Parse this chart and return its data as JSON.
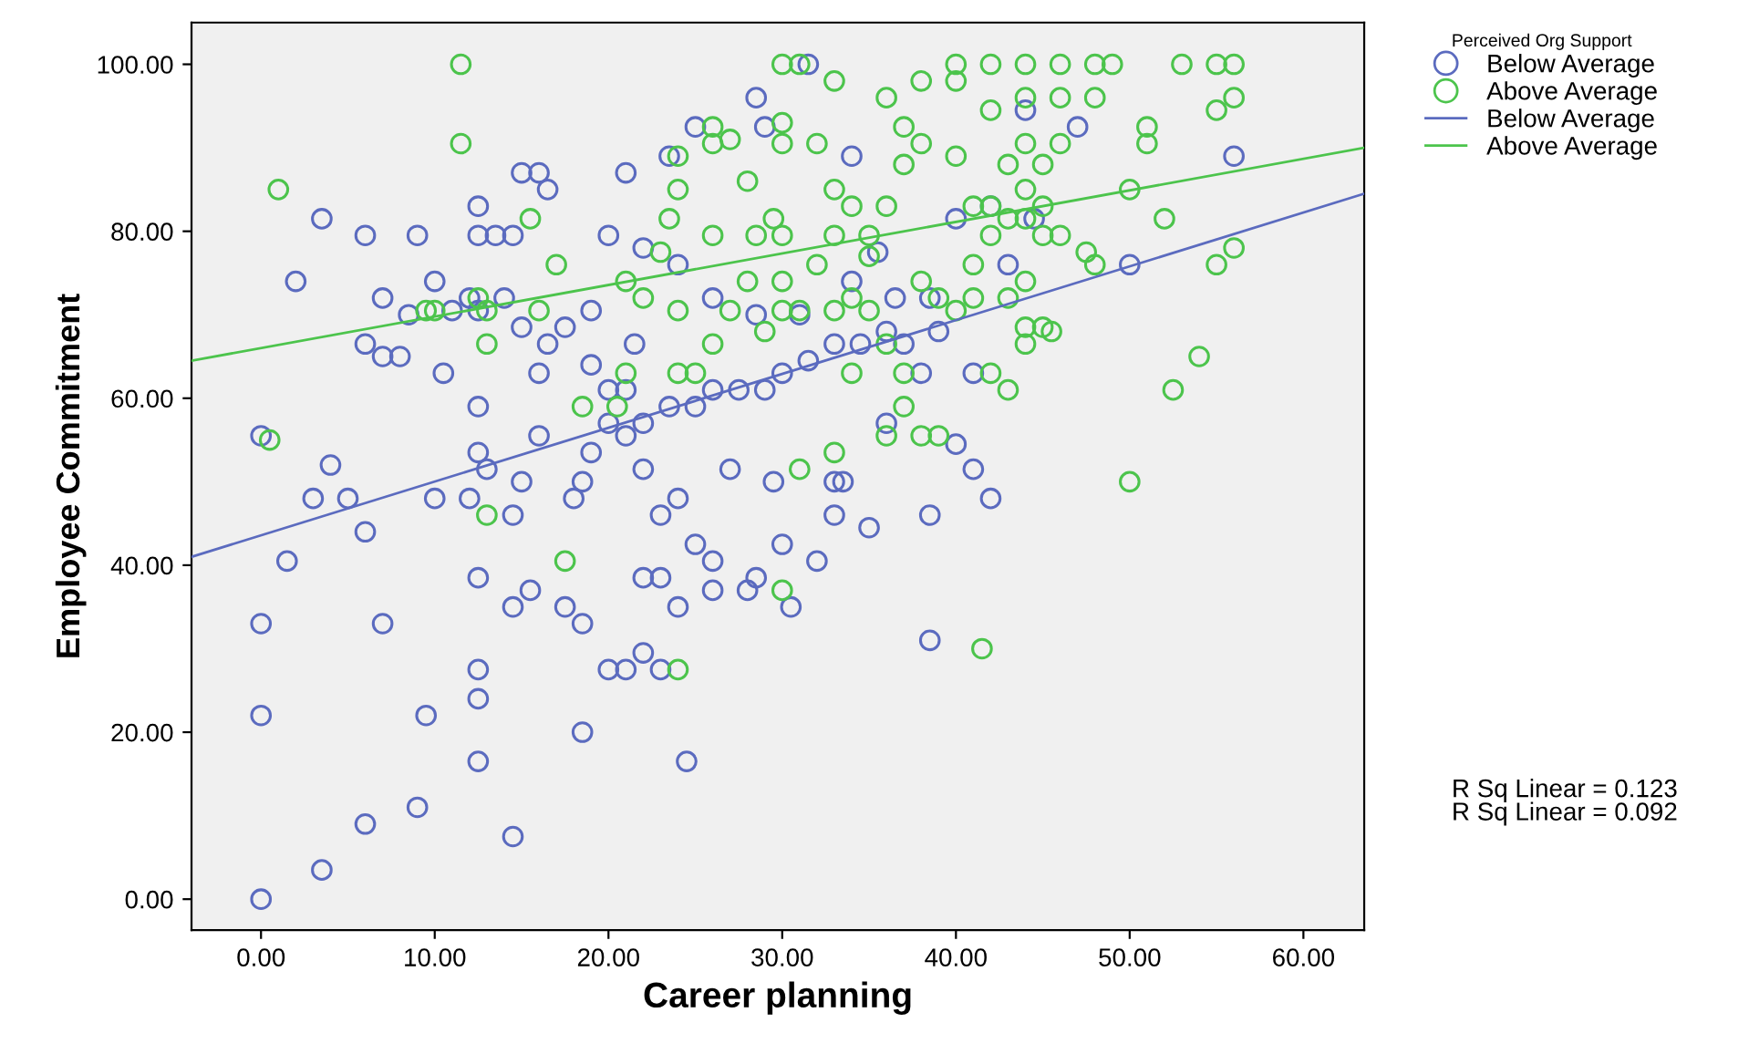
{
  "chart_data": {
    "type": "scatter",
    "xlabel": "Career planning",
    "ylabel": "Employee Commitment",
    "legend_title": "Perceived Org Support",
    "legend": "top right",
    "grid": false,
    "marker": "circle",
    "xlim": [
      -4,
      63.5
    ],
    "ylim": [
      -3.7,
      105
    ],
    "xticks": [
      {
        "value": 0,
        "label": "0.00"
      },
      {
        "value": 10,
        "label": "10.00"
      },
      {
        "value": 20,
        "label": "20.00"
      },
      {
        "value": 30,
        "label": "30.00"
      },
      {
        "value": 40,
        "label": "40.00"
      },
      {
        "value": 50,
        "label": "50.00"
      },
      {
        "value": 60,
        "label": "60.00"
      }
    ],
    "yticks": [
      {
        "value": 0,
        "label": "0.00"
      },
      {
        "value": 20,
        "label": "20.00"
      },
      {
        "value": 40,
        "label": "40.00"
      },
      {
        "value": 60,
        "label": "60.00"
      },
      {
        "value": 80,
        "label": "80.00"
      },
      {
        "value": 100,
        "label": "100.00"
      }
    ],
    "annotations": [
      "R Sq Linear = 0.123",
      "R Sq Linear = 0.092"
    ],
    "series": [
      {
        "name": "Below Average",
        "color": "#5b6bbf",
        "x": [
          0,
          0,
          0,
          0,
          3.5,
          6,
          9,
          9.5,
          7,
          6,
          3,
          4,
          1.5,
          12.5,
          12.5,
          12.5,
          14.5,
          14.5,
          12.5,
          12,
          12.5,
          13,
          14.5,
          15,
          16,
          15.5,
          17.5,
          18.5,
          18.5,
          18.5,
          18,
          20,
          21,
          22,
          23,
          22,
          23,
          24,
          24.5,
          25,
          26,
          26,
          28,
          28.5,
          30,
          30.5,
          32,
          33,
          35,
          38.5,
          38.5,
          42,
          41,
          40,
          36,
          33,
          33.5,
          29.5,
          27,
          24,
          23,
          22,
          21,
          22,
          23.5,
          25,
          26,
          27.5,
          29,
          30,
          31.5,
          33,
          34.5,
          36,
          37,
          38.5,
          36.5,
          34,
          31,
          28.5,
          26,
          24,
          22,
          20,
          21,
          23.5,
          25,
          28.5,
          31.5,
          29,
          34,
          35.5,
          40,
          42,
          44.5,
          47,
          44,
          50,
          56,
          43,
          38,
          41,
          39,
          10,
          12.5,
          12.5,
          14.5,
          15,
          16.5,
          16,
          13.5,
          9,
          6,
          3.5,
          2,
          7,
          8.5,
          11,
          12,
          12.5,
          14,
          15,
          16.5,
          16,
          17.5,
          19,
          19,
          20,
          21,
          21.5,
          8,
          7,
          6,
          10.5,
          12.5,
          10,
          5,
          19,
          20
        ],
        "values": [
          0,
          22,
          33,
          55.5,
          3.5,
          9,
          11,
          22,
          33,
          44,
          48,
          52,
          40.5,
          16.5,
          24,
          27.5,
          7.5,
          35,
          38.5,
          48,
          53.5,
          51.5,
          46,
          50,
          55.5,
          37,
          35,
          20,
          33,
          50,
          48,
          27.5,
          27.5,
          29.5,
          27.5,
          38.5,
          38.5,
          35,
          16.5,
          42.5,
          40.5,
          37,
          37,
          38.5,
          42.5,
          35,
          40.5,
          46,
          44.5,
          31,
          46,
          48,
          51.5,
          54.5,
          57,
          50,
          50,
          50,
          51.5,
          48,
          46,
          51.5,
          55.5,
          57,
          59,
          59,
          61,
          61,
          61,
          63,
          64.5,
          66.5,
          66.5,
          68,
          66.5,
          72,
          72,
          74,
          70,
          70,
          72,
          76,
          78,
          79.5,
          87,
          89,
          92.5,
          96,
          100,
          92.5,
          89,
          77.5,
          81.5,
          83,
          81.5,
          92.5,
          94.5,
          76,
          89,
          76,
          63,
          63,
          68,
          74,
          83,
          79.5,
          79.5,
          87,
          85,
          87,
          79.5,
          79.5,
          79.5,
          81.5,
          74,
          72,
          70,
          70.5,
          72,
          70.5,
          72,
          68.5,
          66.5,
          63,
          68.5,
          70.5,
          64,
          61,
          61,
          66.5,
          65,
          65,
          66.5,
          63,
          59,
          48,
          48,
          53.5,
          57
        ]
      },
      {
        "name": "Above Average",
        "color": "#4cc44c",
        "x": [
          1,
          0.5,
          11.5,
          11.5,
          9.5,
          10,
          13,
          13,
          12.5,
          15.5,
          17,
          16,
          18.5,
          17.5,
          13,
          24,
          24,
          24,
          22,
          21,
          23,
          23.5,
          24,
          24,
          26,
          26,
          27,
          28,
          28.5,
          29.5,
          30,
          30,
          30,
          30,
          31,
          33,
          32,
          33,
          34,
          33,
          35,
          36,
          37,
          37,
          38,
          36,
          38,
          40,
          40,
          42,
          44,
          46,
          48,
          49,
          53,
          55,
          56,
          56,
          55,
          51,
          51,
          48,
          46,
          44,
          42,
          40,
          41,
          42,
          43,
          44,
          45,
          44,
          43,
          44,
          45,
          46,
          42,
          41,
          41,
          43,
          44,
          45,
          46,
          47.5,
          48,
          50,
          52,
          56,
          55,
          54,
          52.5,
          50,
          44,
          45,
          44,
          45.5,
          42,
          43,
          41.5,
          38,
          37,
          36,
          39,
          37,
          36,
          35,
          34,
          33,
          31,
          30,
          29,
          28,
          30,
          27,
          26,
          25,
          21,
          20.5,
          30,
          31,
          33,
          34,
          38,
          39,
          40,
          35,
          32,
          26
        ],
        "values": [
          85,
          55,
          100,
          90.5,
          70.5,
          70.5,
          70.5,
          66.5,
          72,
          81.5,
          76,
          70.5,
          59,
          40.5,
          46,
          27.5,
          63,
          70.5,
          72,
          74,
          77.5,
          81.5,
          85,
          89,
          90.5,
          92.5,
          91,
          86,
          79.5,
          81.5,
          79.5,
          90.5,
          93,
          100,
          100,
          98,
          90.5,
          85,
          83,
          79.5,
          79.5,
          83,
          88,
          92.5,
          90.5,
          96,
          98,
          98,
          100,
          100,
          100,
          100,
          100,
          100,
          100,
          100,
          100,
          96,
          94.5,
          92.5,
          90.5,
          96,
          96,
          96,
          94.5,
          89,
          83,
          83,
          81.5,
          81.5,
          83,
          85,
          88,
          90.5,
          88,
          90.5,
          79.5,
          76,
          72,
          72,
          74,
          79.5,
          79.5,
          77.5,
          76,
          85,
          81.5,
          78,
          76,
          65,
          61,
          50,
          68.5,
          68.5,
          66.5,
          68,
          63,
          61,
          30,
          55.5,
          59,
          55.5,
          55.5,
          63,
          66.5,
          70.5,
          72,
          70.5,
          70.5,
          70.5,
          68,
          74,
          74,
          70.5,
          66.5,
          63,
          63,
          59,
          37,
          51.5,
          53.5,
          63,
          74,
          72,
          70.5,
          77,
          76,
          79.5
        ]
      },
      {
        "name": "Below Average",
        "color": "#5b6bbf",
        "type": "line",
        "marker": "none",
        "x": [
          -4,
          63.5
        ],
        "values": [
          41,
          84.5
        ]
      },
      {
        "name": "Above Average",
        "color": "#4cc44c",
        "type": "line",
        "marker": "none",
        "x": [
          -4,
          63.5
        ],
        "values": [
          64.5,
          90
        ]
      }
    ]
  }
}
